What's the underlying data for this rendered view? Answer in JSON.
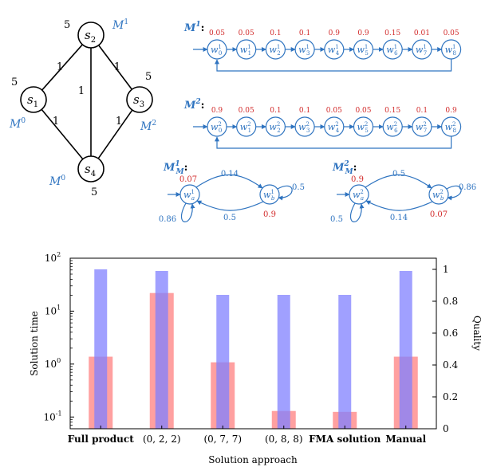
{
  "graph": {
    "nodes": [
      {
        "id": "s1",
        "sub": "1",
        "machine": "M",
        "machine_sup": "0",
        "prob": "5"
      },
      {
        "id": "s2",
        "sub": "2",
        "machine": "M",
        "machine_sup": "1",
        "prob": "5"
      },
      {
        "id": "s3",
        "sub": "3",
        "machine": "M",
        "machine_sup": "2",
        "prob": "5"
      },
      {
        "id": "s4",
        "sub": "4",
        "machine": "M",
        "machine_sup": "0",
        "prob": "5"
      }
    ],
    "edges": [
      {
        "from": "s1",
        "to": "s2",
        "label": "1"
      },
      {
        "from": "s2",
        "to": "s3",
        "label": "1"
      },
      {
        "from": "s2",
        "to": "s4",
        "label": "1"
      },
      {
        "from": "s1",
        "to": "s4",
        "label": "1"
      },
      {
        "from": "s3",
        "to": "s4",
        "label": "1"
      }
    ],
    "node_letter": "s"
  },
  "chains": [
    {
      "name": "M",
      "sup": "1",
      "sep": ":",
      "state_letter": "w",
      "state_sup": "1",
      "state_subs": [
        "0",
        "1",
        "2",
        "3",
        "4",
        "5",
        "6",
        "7",
        "8"
      ],
      "probs": [
        "0.05",
        "0.05",
        "0.1",
        "0.1",
        "0.9",
        "0.9",
        "0.15",
        "0.01",
        "0.05"
      ]
    },
    {
      "name": "M",
      "sup": "2",
      "sep": ":",
      "state_letter": "w",
      "state_sup": "2",
      "state_subs": [
        "0",
        "1",
        "2",
        "3",
        "4",
        "5",
        "6",
        "7",
        "8"
      ],
      "probs": [
        "0.9",
        "0.05",
        "0.1",
        "0.1",
        "0.05",
        "0.05",
        "0.15",
        "0.1",
        "0.9"
      ]
    }
  ],
  "minimized": [
    {
      "name": "M",
      "sup": "1",
      "sub": "M",
      "sep": ":",
      "state_letter": "w",
      "state_sup": "1",
      "states": [
        "a",
        "b"
      ],
      "prob_a": "0.07",
      "prob_b": "0.9",
      "top_edge": "0.14",
      "bottom_edge": "0.5",
      "self_a": "0.86",
      "self_b": "0.5"
    },
    {
      "name": "M",
      "sup": "2",
      "sub": "M",
      "sep": ":",
      "state_letter": "w",
      "state_sup": "2",
      "states": [
        "a",
        "b"
      ],
      "prob_a": "0.9",
      "prob_b": "0.07",
      "top_edge": "0.5",
      "bottom_edge": "0.14",
      "self_a": "0.5",
      "self_b": "0.86"
    }
  ],
  "chart_data": {
    "type": "bar",
    "categories": [
      "Full product",
      "(0, 2, 2)",
      "(0, 7, 7)",
      "(0, 8, 8)",
      "FMA solution",
      "Manual"
    ],
    "series": [
      {
        "name": "",
        "axis": "left",
        "scale": "log",
        "color": "#ff8080",
        "values": [
          1.38,
          22.0,
          1.08,
          0.13,
          0.125,
          1.38
        ]
      },
      {
        "name": "",
        "axis": "right",
        "scale": "linear",
        "color": "#8080ff",
        "values": [
          1.0,
          0.99,
          0.84,
          0.84,
          0.84,
          0.99
        ]
      }
    ],
    "xlabel": "Solution approach",
    "ylabel": "Solution time",
    "y2label": "Quality",
    "ylim": [
      0.06,
      100
    ],
    "y2lim": [
      0,
      1.07
    ],
    "yticks": [
      {
        "base": "10",
        "exp": "-1"
      },
      {
        "base": "10",
        "exp": "0"
      },
      {
        "base": "10",
        "exp": "1"
      },
      {
        "base": "10",
        "exp": "2"
      }
    ],
    "y2ticks": [
      "0",
      "0.2",
      "0.4",
      "0.6",
      "0.8",
      "1"
    ],
    "grid": false,
    "legend": "none"
  }
}
